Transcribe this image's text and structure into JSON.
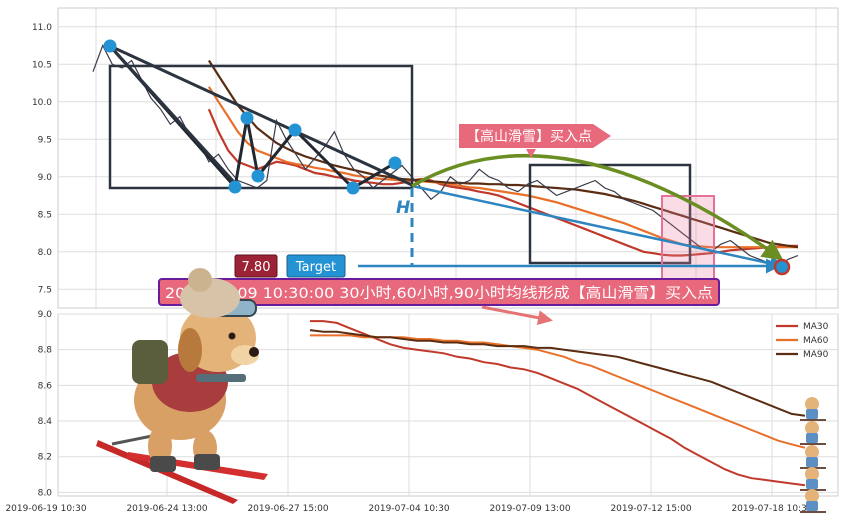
{
  "chart_data": [
    {
      "type": "line",
      "panel": "price",
      "ylim": [
        7.25,
        11.25
      ],
      "yticks": [
        7.5,
        8.0,
        8.5,
        9.0,
        9.5,
        10.0,
        10.5,
        11.0
      ],
      "ytick_labels": [
        "7.5",
        "8.0",
        "8.5",
        "9.0",
        "9.5",
        "10.0",
        "10.5",
        "11.0"
      ],
      "grid": true,
      "series": [
        {
          "role": "price",
          "color": "#3a3a4a",
          "values": [
            10.4,
            10.75,
            10.5,
            10.45,
            10.55,
            10.3,
            10.05,
            9.9,
            9.7,
            9.8,
            9.55,
            9.45,
            9.2,
            9.3,
            9.1,
            8.95,
            8.9,
            8.85,
            8.95,
            9.75,
            9.5,
            9.3,
            9.1,
            9.25,
            9.4,
            9.6,
            9.3,
            9.1,
            9.0,
            8.85,
            8.95,
            9.05,
            9.15,
            9.0,
            8.85,
            8.7,
            8.8,
            9.0,
            8.9,
            8.95,
            9.1,
            9.0,
            8.95,
            8.85,
            8.8,
            8.9,
            8.95,
            8.85,
            8.75,
            8.8,
            8.85,
            8.9,
            8.95,
            8.85,
            8.8,
            8.7,
            8.65,
            8.6,
            8.55,
            8.45,
            8.35,
            8.25,
            8.15,
            8.05,
            8.0,
            8.1,
            8.15,
            8.05,
            7.95,
            7.9,
            7.85,
            7.82,
            7.9,
            7.95
          ]
        },
        {
          "role": "ma-short",
          "color": "#c0392b",
          "values": [
            null,
            null,
            null,
            null,
            null,
            null,
            null,
            null,
            null,
            null,
            null,
            null,
            9.9,
            9.6,
            9.35,
            9.2,
            9.15,
            9.1,
            9.15,
            9.2,
            9.18,
            9.15,
            9.1,
            9.05,
            9.03,
            9.0,
            8.98,
            8.95,
            8.93,
            8.92,
            8.9,
            8.9,
            8.92,
            8.95,
            8.97,
            8.95,
            8.9,
            8.87,
            8.85,
            8.83,
            8.8,
            8.78,
            8.75,
            8.7,
            8.65,
            8.6,
            8.55,
            8.5,
            8.45,
            8.4,
            8.35,
            8.3,
            8.25,
            8.2,
            8.15,
            8.1,
            8.05,
            8.0,
            7.98,
            7.96,
            7.95,
            7.95,
            7.96,
            7.97,
            7.98,
            8.0,
            8.02,
            8.03,
            8.04,
            8.05,
            8.06,
            8.07,
            8.08,
            8.08
          ]
        },
        {
          "role": "ma-mid",
          "color": "#e8702a",
          "values": [
            null,
            null,
            null,
            null,
            null,
            null,
            null,
            null,
            null,
            null,
            null,
            null,
            10.2,
            10.0,
            9.8,
            9.6,
            9.45,
            9.35,
            9.3,
            9.25,
            9.2,
            9.17,
            9.15,
            9.12,
            9.1,
            9.07,
            9.05,
            9.02,
            9.0,
            8.98,
            8.97,
            8.96,
            8.95,
            8.95,
            8.94,
            8.93,
            8.92,
            8.9,
            8.88,
            8.86,
            8.85,
            8.83,
            8.81,
            8.79,
            8.77,
            8.75,
            8.72,
            8.69,
            8.66,
            8.62,
            8.58,
            8.54,
            8.5,
            8.46,
            8.42,
            8.38,
            8.33,
            8.28,
            8.23,
            8.18,
            8.14,
            8.1,
            8.08,
            8.07,
            8.06,
            8.06,
            8.06,
            8.06,
            8.06,
            8.06,
            8.06,
            8.06,
            8.06,
            8.06
          ]
        },
        {
          "role": "ma-long",
          "color": "#5a2d12",
          "values": [
            null,
            null,
            null,
            null,
            null,
            null,
            null,
            null,
            null,
            null,
            null,
            null,
            10.55,
            10.35,
            10.15,
            9.95,
            9.8,
            9.65,
            9.55,
            9.45,
            9.38,
            9.32,
            9.27,
            9.23,
            9.19,
            9.15,
            9.12,
            9.09,
            9.06,
            9.03,
            9.01,
            8.99,
            8.97,
            8.96,
            8.95,
            8.94,
            8.93,
            8.92,
            8.92,
            8.91,
            8.91,
            8.9,
            8.9,
            8.89,
            8.89,
            8.88,
            8.87,
            8.86,
            8.85,
            8.84,
            8.83,
            8.81,
            8.79,
            8.77,
            8.74,
            8.71,
            8.68,
            8.64,
            8.6,
            8.56,
            8.52,
            8.48,
            8.44,
            8.4,
            8.36,
            8.32,
            8.28,
            8.24,
            8.2,
            8.16,
            8.12,
            8.1,
            8.08,
            8.06
          ]
        }
      ],
      "annotations": {
        "buy_label": "【高山滑雪】买入点",
        "h_label": "H",
        "price_badge": "7.80",
        "target_badge": "Target",
        "signal_text": "2019-07-09 10:30:00 30小时,60小时,90小时均线形成【高山滑雪】买入点",
        "pattern_points": [
          {
            "x": 1,
            "y": 10.75
          },
          {
            "x": 19,
            "y": 8.85
          },
          {
            "x": 20,
            "y": 9.78
          },
          {
            "x": 21,
            "y": 9.02
          },
          {
            "x": 27,
            "y": 9.6
          },
          {
            "x": 34,
            "y": 8.85
          },
          {
            "x": 40,
            "y": 9.15
          },
          {
            "x": 92,
            "y": 7.8
          }
        ],
        "end_marker": {
          "x": 92,
          "y": 7.8
        }
      }
    },
    {
      "type": "line",
      "panel": "moving-averages",
      "ylim": [
        7.98,
        9.0
      ],
      "yticks": [
        8.0,
        8.2,
        8.4,
        8.6,
        8.8,
        9.0
      ],
      "ytick_labels": [
        "8.0",
        "8.2",
        "8.4",
        "8.6",
        "8.8",
        "9.0"
      ],
      "grid": true,
      "legend_position": "top-right",
      "x_tick_labels": [
        "2019-06-19 10:30",
        "2019-06-24 13:00",
        "2019-06-27 15:00",
        "2019-07-04 10:30",
        "2019-07-09 13:00",
        "2019-07-12 15:00",
        "2019-07-18 10:30"
      ],
      "series": [
        {
          "name": "MA30",
          "color": "#c0392b",
          "values": [
            8.96,
            8.96,
            8.95,
            8.92,
            8.89,
            8.86,
            8.83,
            8.81,
            8.8,
            8.79,
            8.78,
            8.76,
            8.75,
            8.73,
            8.72,
            8.7,
            8.69,
            8.67,
            8.64,
            8.61,
            8.58,
            8.54,
            8.5,
            8.46,
            8.42,
            8.38,
            8.34,
            8.3,
            8.25,
            8.21,
            8.17,
            8.13,
            8.1,
            8.08,
            8.07,
            8.06,
            8.05,
            8.04
          ]
        },
        {
          "name": "MA60",
          "color": "#e8702a",
          "values": [
            8.88,
            8.88,
            8.88,
            8.88,
            8.87,
            8.87,
            8.87,
            8.87,
            8.86,
            8.86,
            8.85,
            8.85,
            8.84,
            8.84,
            8.83,
            8.82,
            8.81,
            8.8,
            8.78,
            8.76,
            8.73,
            8.71,
            8.68,
            8.65,
            8.62,
            8.59,
            8.56,
            8.53,
            8.5,
            8.47,
            8.44,
            8.41,
            8.38,
            8.35,
            8.32,
            8.29,
            8.27,
            8.25
          ]
        },
        {
          "name": "MA90",
          "color": "#5a2d12",
          "values": [
            8.91,
            8.9,
            8.9,
            8.89,
            8.88,
            8.87,
            8.87,
            8.86,
            8.85,
            8.85,
            8.84,
            8.84,
            8.83,
            8.83,
            8.82,
            8.82,
            8.82,
            8.81,
            8.81,
            8.8,
            8.79,
            8.78,
            8.77,
            8.76,
            8.74,
            8.72,
            8.7,
            8.68,
            8.66,
            8.64,
            8.62,
            8.59,
            8.56,
            8.53,
            8.5,
            8.47,
            8.44,
            8.43
          ]
        }
      ]
    }
  ]
}
